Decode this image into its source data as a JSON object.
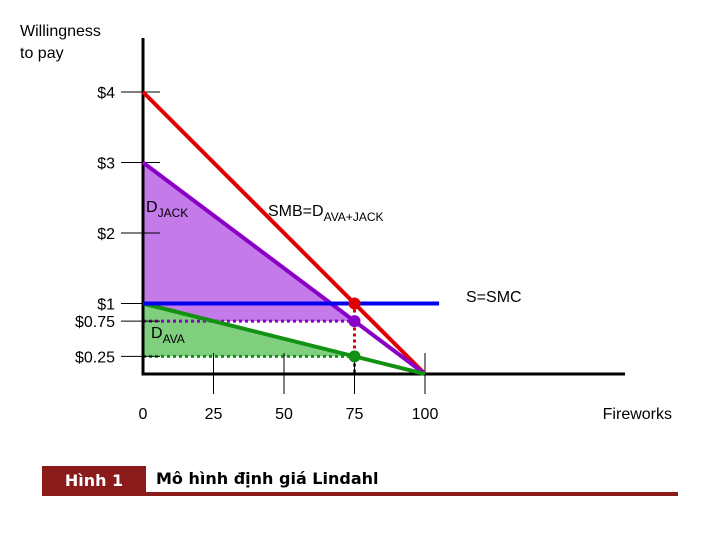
{
  "chart_data": {
    "type": "line",
    "ylabel": "Willingness\nto pay",
    "xlabel": "Fireworks",
    "xlim": [
      0,
      100
    ],
    "ylim": [
      0,
      4
    ],
    "y_ticks": [
      {
        "value": 4,
        "label": "$4"
      },
      {
        "value": 3,
        "label": "$3"
      },
      {
        "value": 2,
        "label": "$2"
      },
      {
        "value": 1,
        "label": "$1"
      },
      {
        "value": 0.75,
        "label": "$0.75"
      },
      {
        "value": 0.25,
        "label": "$0.25"
      }
    ],
    "x_ticks": [
      {
        "value": 0,
        "label": "0"
      },
      {
        "value": 25,
        "label": "25"
      },
      {
        "value": 50,
        "label": "50"
      },
      {
        "value": 75,
        "label": "75"
      },
      {
        "value": 100,
        "label": "100"
      }
    ],
    "series": [
      {
        "name": "SMB=DAVA+JACK",
        "label_main": "SMB=D",
        "label_sub": "AVA+JACK",
        "color": "#e00000",
        "x": [
          0,
          100
        ],
        "y": [
          4,
          0
        ]
      },
      {
        "name": "DJACK",
        "label_main": "D",
        "label_sub": "JACK",
        "color": "#8b00c8",
        "x": [
          0,
          100
        ],
        "y": [
          3,
          0
        ]
      },
      {
        "name": "DAVA",
        "label_main": "D",
        "label_sub": "AVA",
        "color": "#129112",
        "x": [
          0,
          100
        ],
        "y": [
          1,
          0
        ]
      },
      {
        "name": "S=SMC",
        "label_main": "S=SMC",
        "label_sub": "",
        "color": "#0000ee",
        "x": [
          0,
          105
        ],
        "y": [
          1,
          1
        ]
      }
    ],
    "shaded_areas": [
      {
        "name": "jack-surplus",
        "color": "#c47ae8",
        "polygon": [
          [
            0,
            3
          ],
          [
            75,
            0.75
          ],
          [
            0,
            0.75
          ]
        ]
      },
      {
        "name": "ava-surplus",
        "color": "#7fcf7f",
        "polygon": [
          [
            0,
            1
          ],
          [
            75,
            0.25
          ],
          [
            0,
            0.25
          ]
        ]
      }
    ],
    "points": [
      {
        "x": 75,
        "y": 1,
        "color": "#e00000"
      },
      {
        "x": 75,
        "y": 0.75,
        "color": "#8b00c8"
      },
      {
        "x": 75,
        "y": 0.25,
        "color": "#129112"
      }
    ],
    "dotted_guides": [
      {
        "from": [
          0,
          0.75
        ],
        "to": [
          75,
          0.75
        ],
        "color": "#8b00c8"
      },
      {
        "from": [
          0,
          0.25
        ],
        "to": [
          75,
          0.25
        ],
        "color": "#129112"
      },
      {
        "from": [
          75,
          1
        ],
        "to": [
          75,
          0
        ],
        "color": "#e00000"
      }
    ],
    "grid": false
  },
  "figure": {
    "label": "Hình 1",
    "caption": "Mô hình định giá Lindahl"
  }
}
